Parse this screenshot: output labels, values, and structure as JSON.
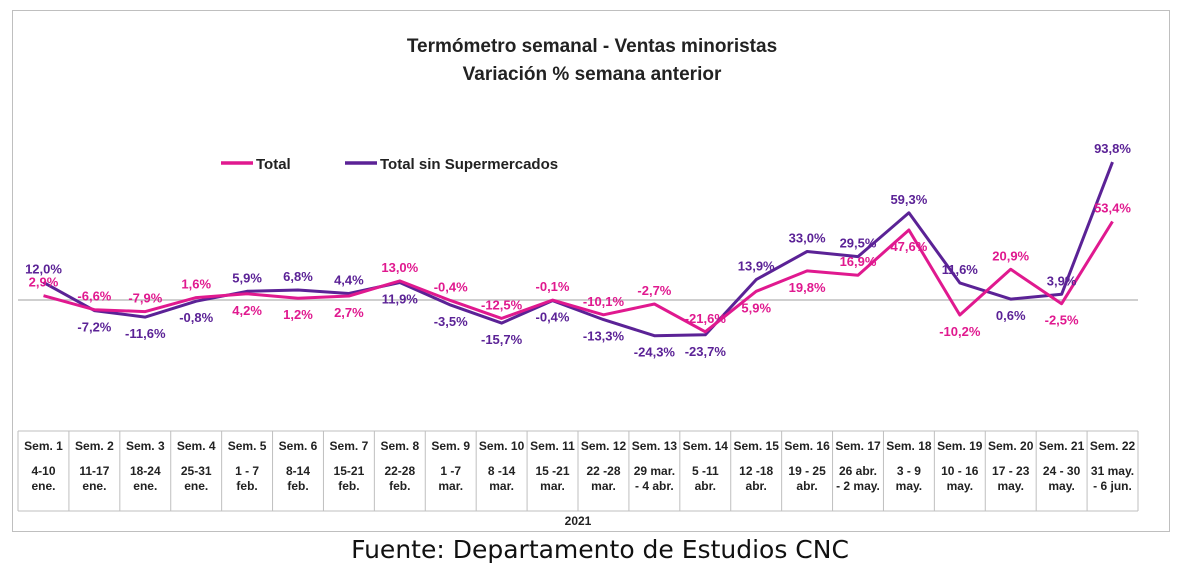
{
  "source": "Fuente: Departamento de Estudios CNC",
  "chart_data": {
    "type": "line",
    "title": "Termómetro semanal - Ventas minoristas",
    "subtitle": "Variación % semana anterior",
    "year_label": "2021",
    "categories_top": [
      "Sem. 1",
      "Sem. 2",
      "Sem. 3",
      "Sem. 4",
      "Sem. 5",
      "Sem. 6",
      "Sem. 7",
      "Sem. 8",
      "Sem. 9",
      "Sem. 10",
      "Sem. 11",
      "Sem. 12",
      "Sem. 13",
      "Sem. 14",
      "Sem. 15",
      "Sem. 16",
      "Sem. 17",
      "Sem. 18",
      "Sem. 19",
      "Sem. 20",
      "Sem. 21",
      "Sem. 22"
    ],
    "categories_bottom": [
      [
        "4-10",
        "ene."
      ],
      [
        "11-17",
        "ene."
      ],
      [
        "18-24",
        "ene."
      ],
      [
        "25-31",
        "ene."
      ],
      [
        "1 - 7",
        "feb."
      ],
      [
        "8-14",
        "feb."
      ],
      [
        "15-21",
        "feb."
      ],
      [
        "22-28",
        "feb."
      ],
      [
        "1 -7",
        "mar."
      ],
      [
        "8 -14",
        "mar."
      ],
      [
        "15 -21",
        "mar."
      ],
      [
        "22 -28",
        "mar."
      ],
      [
        "29 mar.",
        "- 4 abr."
      ],
      [
        "5 -11",
        "abr."
      ],
      [
        "12 -18",
        "abr."
      ],
      [
        "19 - 25",
        "abr."
      ],
      [
        "26 abr.",
        "- 2 may."
      ],
      [
        "3 - 9",
        "may."
      ],
      [
        "10 - 16",
        "may."
      ],
      [
        "17 - 23",
        "may."
      ],
      [
        "24 - 30",
        "may."
      ],
      [
        "31 may.",
        "- 6 jun."
      ]
    ],
    "series": [
      {
        "name": "Total",
        "color": "#e0198f",
        "values": [
          2.9,
          -6.6,
          -7.9,
          1.6,
          4.2,
          1.2,
          2.7,
          13.0,
          -0.4,
          -12.5,
          -0.1,
          -10.1,
          -2.7,
          -21.6,
          5.9,
          19.8,
          16.9,
          47.6,
          -10.2,
          20.9,
          -2.5,
          53.4
        ],
        "labels": [
          "2,9%",
          "-6,6%",
          "-7,9%",
          "1,6%",
          "4,2%",
          "1,2%",
          "2,7%",
          "13,0%",
          "-0,4%",
          "-12,5%",
          "-0,1%",
          "-10,1%",
          "-2,7%",
          "-21,6%",
          "5,9%",
          "19,8%",
          "16,9%",
          "47,6%",
          "-10,2%",
          "20,9%",
          "-2,5%",
          "53,4%"
        ]
      },
      {
        "name": "Total sin Supermercados",
        "color": "#5b2296",
        "values": [
          12.0,
          -7.2,
          -11.6,
          -0.8,
          5.9,
          6.8,
          4.4,
          11.9,
          -3.5,
          -15.7,
          -0.4,
          -13.3,
          -24.3,
          -23.7,
          13.9,
          33.0,
          29.5,
          59.3,
          11.6,
          0.6,
          3.9,
          93.8
        ],
        "labels": [
          "12,0%",
          "-7,2%",
          "-11,6%",
          "-0,8%",
          "5,9%",
          "6,8%",
          "4,4%",
          "11,9%",
          "-3,5%",
          "-15,7%",
          "-0,4%",
          "-13,3%",
          "-24,3%",
          "-23,7%",
          "13,9%",
          "33,0%",
          "29,5%",
          "59,3%",
          "11,6%",
          "0,6%",
          "3,9%",
          "93,8%"
        ]
      }
    ],
    "legend_position": "top-left",
    "grid": false
  }
}
